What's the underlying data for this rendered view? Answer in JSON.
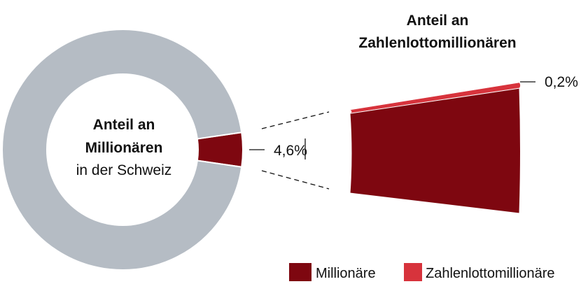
{
  "colors": {
    "gray": "#b5bcc4",
    "dark_red": "#7e0710",
    "light_red": "#d7333c",
    "background": "#ffffff",
    "text": "#111111"
  },
  "chart_data": {
    "type": "pie",
    "subtype": "donut with bar-of-pie breakdown",
    "donut": {
      "title_line1": "Anteil an",
      "title_line2": "Millionären",
      "title_line3": "in der Schweiz",
      "slices": [
        {
          "name": "Millionäre",
          "value": 4.6,
          "label": "4,6%",
          "color": "#7e0710"
        },
        {
          "name": "",
          "value": 95.4,
          "label": "",
          "color": "#b5bcc4"
        }
      ]
    },
    "breakdown": {
      "title_line1": "Anteil an",
      "title_line2": "Zahlenlottomillionären",
      "slices": [
        {
          "name": "Zahlenlottomillionäre",
          "value": 0.2,
          "label": "0,2%",
          "color": "#d7333c"
        },
        {
          "name": "Millionäre",
          "value": 4.4,
          "label": "",
          "color": "#7e0710"
        }
      ]
    },
    "legend": {
      "position": "bottom-right",
      "items": [
        {
          "label": "Millionäre",
          "color": "#7e0710"
        },
        {
          "label": "Zahlenlottomillionäre",
          "color": "#d7333c"
        }
      ]
    }
  }
}
